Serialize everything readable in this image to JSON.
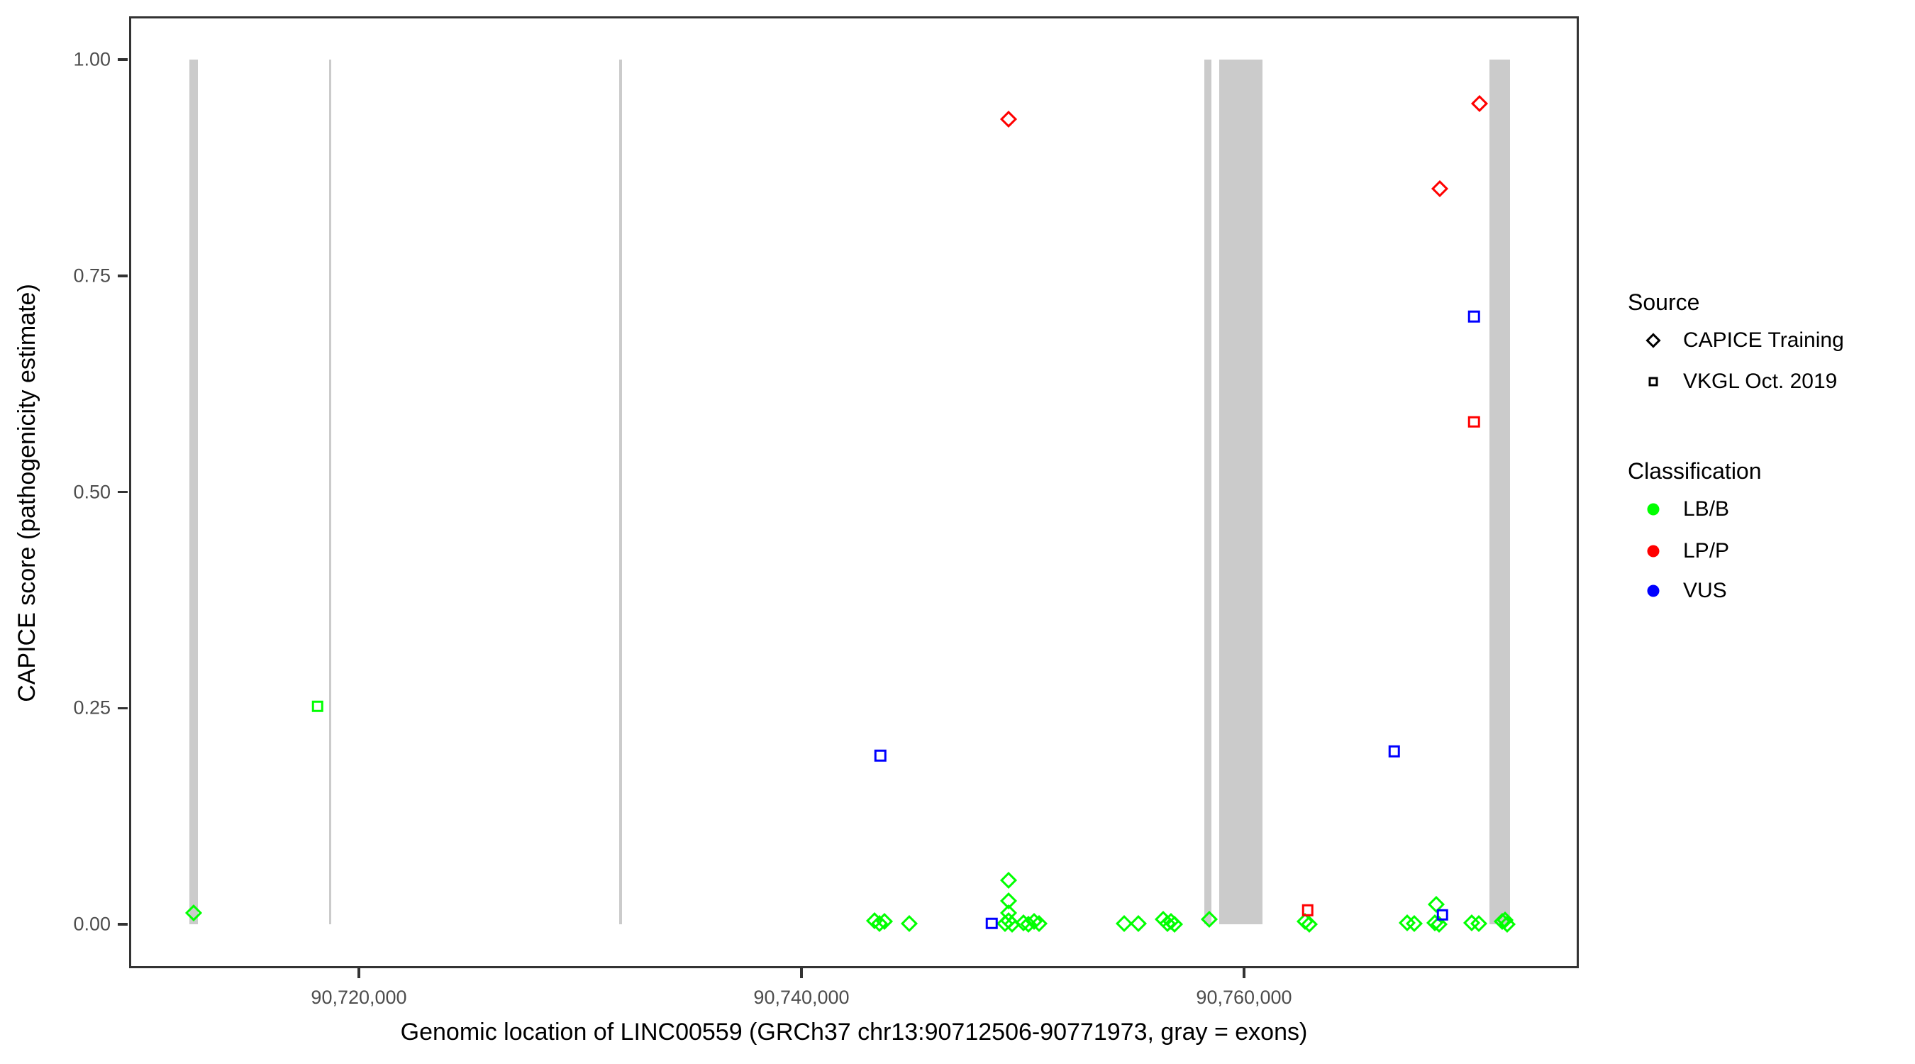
{
  "chart_data": {
    "type": "scatter",
    "xlabel": "Genomic location of LINC00559 (GRCh37 chr13:90712506-90771973, gray = exons)",
    "ylabel": "CAPICE score (pathogenicity estimate)",
    "grid": false,
    "xlim": [
      90709500,
      90775000
    ],
    "ylim": [
      -0.05,
      1.05
    ],
    "x_ticks": [
      {
        "value": 90720000,
        "label": "90,720,000"
      },
      {
        "value": 90740000,
        "label": "90,740,000"
      },
      {
        "value": 90760000,
        "label": "90,760,000"
      }
    ],
    "y_ticks": [
      {
        "value": 1.0,
        "label": "1.00"
      },
      {
        "value": 0.75,
        "label": "0.75"
      },
      {
        "value": 0.5,
        "label": "0.50"
      },
      {
        "value": 0.25,
        "label": "0.25"
      },
      {
        "value": 0.0,
        "label": "0.00"
      }
    ],
    "exon_color": "#CBCBCB",
    "exons": [
      [
        90712340,
        90712720
      ],
      [
        90718654,
        90718750
      ],
      [
        90731763,
        90731891
      ],
      [
        90758205,
        90758525
      ],
      [
        90758878,
        90760833
      ],
      [
        90771090,
        90772019
      ]
    ],
    "series": [
      {
        "name": "CAPICE Training LB/B",
        "source": "CAPICE Training",
        "classification": "LB/B",
        "marker": "diamond",
        "color": "#00FF00",
        "points": [
          [
            90712520,
            0.013
          ],
          [
            90743300,
            0.004
          ],
          [
            90743520,
            0.001
          ],
          [
            90743740,
            0.003
          ],
          [
            90744870,
            0.001
          ],
          [
            90749360,
            0.051
          ],
          [
            90749360,
            0.027
          ],
          [
            90749360,
            0.013
          ],
          [
            90749360,
            0.004
          ],
          [
            90749200,
            0.001
          ],
          [
            90749520,
            0.0
          ],
          [
            90750030,
            0.002
          ],
          [
            90750260,
            0.0
          ],
          [
            90750515,
            0.003
          ],
          [
            90750740,
            0.001
          ],
          [
            90754580,
            0.001
          ],
          [
            90755220,
            0.001
          ],
          [
            90756350,
            0.006
          ],
          [
            90756540,
            0.001
          ],
          [
            90756700,
            0.003
          ],
          [
            90756860,
            0.0
          ],
          [
            90758430,
            0.006
          ],
          [
            90762760,
            0.003
          ],
          [
            90762950,
            0.0
          ],
          [
            90767370,
            0.002
          ],
          [
            90767690,
            0.001
          ],
          [
            90768620,
            0.002
          ],
          [
            90768690,
            0.023
          ],
          [
            90768800,
            0.0
          ],
          [
            90770290,
            0.002
          ],
          [
            90770610,
            0.001
          ],
          [
            90771670,
            0.003
          ],
          [
            90771780,
            0.005
          ],
          [
            90771890,
            0.0
          ]
        ]
      },
      {
        "name": "CAPICE Training LP/P",
        "source": "CAPICE Training",
        "classification": "LP/P",
        "marker": "diamond",
        "color": "#FF0000",
        "points": [
          [
            90749360,
            0.931
          ],
          [
            90768840,
            0.851
          ],
          [
            90770650,
            0.949
          ]
        ]
      },
      {
        "name": "VKGL Oct. 2019 LB/B",
        "source": "VKGL Oct. 2019",
        "classification": "LB/B",
        "marker": "square",
        "color": "#00FF00",
        "points": [
          [
            90718140,
            0.252
          ]
        ]
      },
      {
        "name": "VKGL Oct. 2019 LP/P",
        "source": "VKGL Oct. 2019",
        "classification": "LP/P",
        "marker": "square",
        "color": "#FF0000",
        "points": [
          [
            90762870,
            0.016
          ],
          [
            90770390,
            0.581
          ]
        ]
      },
      {
        "name": "VKGL Oct. 2019 VUS",
        "source": "VKGL Oct. 2019",
        "classification": "VUS",
        "marker": "square",
        "color": "#0000FF",
        "points": [
          [
            90743560,
            0.195
          ],
          [
            90748590,
            0.001
          ],
          [
            90766790,
            0.2
          ],
          [
            90768970,
            0.011
          ],
          [
            90770390,
            0.703
          ]
        ]
      }
    ],
    "legend_position": "right"
  },
  "legend": {
    "source": {
      "title": "Source",
      "items": [
        {
          "marker": "diamond",
          "label": "CAPICE Training"
        },
        {
          "marker": "square",
          "label": "VKGL Oct. 2019"
        }
      ]
    },
    "classification": {
      "title": "Classification",
      "items": [
        {
          "color": "#00FF00",
          "label": "LB/B"
        },
        {
          "color": "#FF0000",
          "label": "LP/P"
        },
        {
          "color": "#0000FF",
          "label": "VUS"
        }
      ]
    }
  }
}
